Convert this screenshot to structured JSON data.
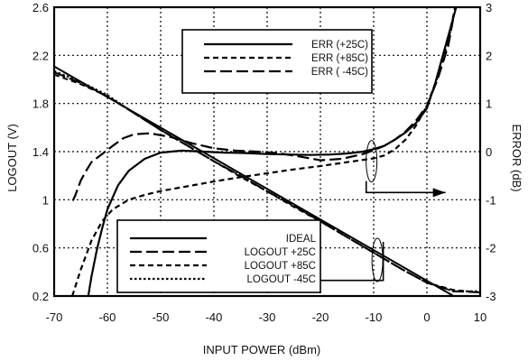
{
  "chart_data": {
    "type": "line",
    "xlabel": "INPUT POWER (dBm)",
    "ylabel_left": "LOGOUT (V)",
    "ylabel_right": "ERROR  (dB)",
    "xlim": [
      -70,
      10
    ],
    "ylim_left": [
      0.2,
      2.6
    ],
    "ylim_right": [
      -3,
      3
    ],
    "x_ticks": [
      -70,
      -60,
      -50,
      -40,
      -30,
      -20,
      -10,
      0,
      10
    ],
    "y_left_ticks": [
      "0.2",
      "0.6",
      "1",
      "1.4",
      "1.8",
      "2.2",
      "2.6"
    ],
    "y_right_ticks": [
      "-3",
      "-2",
      "-1",
      "0",
      "1",
      "2",
      "3"
    ],
    "grid": "dotted",
    "error_legend": {
      "position": "top-right",
      "entries": [
        "ERR (+25C)",
        "ERR (+85C)",
        "ERR ( -45C)"
      ]
    },
    "logout_legend": {
      "position": "bottom-center",
      "entries": [
        "IDEAL",
        "LOGOUT +25C",
        "LOGOUT +85C",
        "LOGOUT -45C"
      ]
    },
    "logout_series": [
      {
        "name": "IDEAL",
        "axis": "left",
        "style": "solid",
        "x": [
          -70,
          5
        ],
        "y": [
          2.108,
          0.2
        ]
      },
      {
        "name": "LOGOUT +25C",
        "axis": "left",
        "style": "long-dash",
        "x": [
          -70,
          -65,
          -60,
          -55,
          -50,
          -45,
          -40,
          -35,
          -30,
          -25,
          -20,
          -15,
          -10,
          -5,
          0,
          5,
          10
        ],
        "y": [
          2.06,
          1.97,
          1.86,
          1.72,
          1.58,
          1.45,
          1.32,
          1.2,
          1.07,
          0.95,
          0.82,
          0.69,
          0.56,
          0.43,
          0.31,
          0.24,
          0.23
        ]
      },
      {
        "name": "LOGOUT +85C",
        "axis": "left",
        "style": "short-dash",
        "x": [
          -70,
          -65,
          -60,
          -55,
          -50,
          -45,
          -40,
          -35,
          -30,
          -25,
          -20,
          -15,
          -10,
          -5,
          0,
          5,
          10
        ],
        "y": [
          2.04,
          1.96,
          1.86,
          1.72,
          1.58,
          1.45,
          1.32,
          1.19,
          1.07,
          0.94,
          0.82,
          0.69,
          0.56,
          0.43,
          0.31,
          0.25,
          0.23
        ]
      },
      {
        "name": "LOGOUT -45C",
        "axis": "left",
        "style": "dotted",
        "x": [
          -70,
          -65,
          -60,
          -55,
          -50,
          -45,
          -40,
          -35,
          -30,
          -25,
          -20,
          -15,
          -10,
          -5,
          0,
          5,
          10
        ],
        "y": [
          2.07,
          1.98,
          1.87,
          1.72,
          1.58,
          1.45,
          1.32,
          1.2,
          1.07,
          0.95,
          0.82,
          0.69,
          0.56,
          0.43,
          0.31,
          0.24,
          0.24
        ]
      }
    ],
    "error_series": [
      {
        "name": "ERR (+25C)",
        "axis": "right",
        "style": "solid",
        "x": [
          -63.6,
          -63,
          -62,
          -61,
          -60,
          -58,
          -56,
          -53,
          -50,
          -46,
          -42,
          -38,
          -34,
          -30,
          -26,
          -22,
          -18,
          -15,
          -12,
          -10,
          -8,
          -6,
          -4,
          -2,
          0,
          1.5,
          3,
          4.5,
          5.5
        ],
        "y": [
          -3,
          -2.6,
          -2.05,
          -1.6,
          -1.2,
          -0.7,
          -0.4,
          -0.15,
          -0.02,
          0.02,
          0.0,
          -0.02,
          -0.03,
          -0.05,
          -0.06,
          -0.07,
          -0.06,
          -0.04,
          0.0,
          0.05,
          0.12,
          0.25,
          0.4,
          0.6,
          0.9,
          1.4,
          2.0,
          2.6,
          3.0
        ]
      },
      {
        "name": "ERR (+85C)",
        "axis": "right",
        "style": "short-dash",
        "x": [
          -66.6,
          -65,
          -63,
          -61,
          -59,
          -56,
          -53,
          -50,
          -45,
          -40,
          -35,
          -30,
          -25,
          -20,
          -15,
          -10,
          -8,
          -6,
          -4,
          -2,
          0,
          2,
          4,
          5.3
        ],
        "y": [
          -3,
          -2.45,
          -1.85,
          -1.45,
          -1.2,
          -1.0,
          -0.9,
          -0.82,
          -0.72,
          -0.62,
          -0.53,
          -0.45,
          -0.37,
          -0.3,
          -0.22,
          -0.14,
          -0.08,
          0.05,
          0.25,
          0.55,
          0.95,
          1.55,
          2.3,
          3.0
        ]
      },
      {
        "name": "ERR ( -45C)",
        "axis": "right",
        "style": "long-dash",
        "x": [
          -66.5,
          -66,
          -65,
          -64,
          -63,
          -61,
          -59,
          -57,
          -55,
          -52,
          -48,
          -44,
          -40,
          -36,
          -32,
          -28,
          -24,
          -20,
          -16,
          -12,
          -10,
          -8,
          -6,
          -4,
          -2,
          0,
          2,
          4,
          5
        ],
        "y": [
          -1.02,
          -0.9,
          -0.6,
          -0.4,
          -0.22,
          -0.05,
          0.12,
          0.28,
          0.36,
          0.38,
          0.3,
          0.17,
          0.07,
          0.02,
          0.0,
          -0.03,
          -0.1,
          -0.18,
          -0.15,
          -0.05,
          0.03,
          0.12,
          0.25,
          0.42,
          0.65,
          0.95,
          1.5,
          2.2,
          2.8
        ]
      }
    ]
  }
}
